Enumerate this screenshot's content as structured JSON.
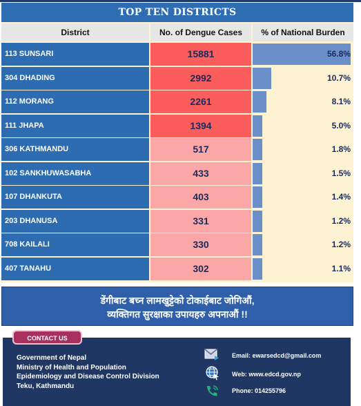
{
  "title": "TOP TEN DISTRICTS",
  "columns": {
    "district": "District",
    "cases": "No. of Dengue Cases",
    "burden": "% of National Burden"
  },
  "rows": [
    {
      "district": "113 SUNSARI",
      "cases": "15881",
      "burden": "56.8%",
      "burden_value": 56.8,
      "case_color": "#fb5d5d"
    },
    {
      "district": "304 DHADING",
      "cases": "2992",
      "burden": "10.7%",
      "burden_value": 10.7,
      "case_color": "#fb5d5d"
    },
    {
      "district": "112 MORANG",
      "cases": "2261",
      "burden": "8.1%",
      "burden_value": 8.1,
      "case_color": "#fb5d5d"
    },
    {
      "district": "111 JHAPA",
      "cases": "1394",
      "burden": "5.0%",
      "burden_value": 5.0,
      "case_color": "#fb5d5d"
    },
    {
      "district": "306 KATHMANDU",
      "cases": "517",
      "burden": "1.8%",
      "burden_value": 1.8,
      "case_color": "#fca7a7"
    },
    {
      "district": "102 SANKHUWASABHA",
      "cases": "433",
      "burden": "1.5%",
      "burden_value": 1.5,
      "case_color": "#fca7a7"
    },
    {
      "district": "107 DHANKUTA",
      "cases": "403",
      "burden": "1.4%",
      "burden_value": 1.4,
      "case_color": "#fca7a7"
    },
    {
      "district": "203 DHANUSA",
      "cases": "331",
      "burden": "1.2%",
      "burden_value": 1.2,
      "case_color": "#fca7a7"
    },
    {
      "district": "708 KAILALI",
      "cases": "330",
      "burden": "1.2%",
      "burden_value": 1.2,
      "case_color": "#fca7a7"
    },
    {
      "district": "407 TANAHU",
      "cases": "302",
      "burden": "1.1%",
      "burden_value": 1.1,
      "case_color": "#fca7a7"
    }
  ],
  "message": {
    "line1": "डेंगीबाट बच्न लामखुट्टेको टोकाईबाट जोगिऔं,",
    "line2": "व्यक्तिगत सुरक्षाका उपायहरु अपनाऔं !!"
  },
  "contact": {
    "label": "CONTACT US",
    "address": [
      "Government of Nepal",
      "Ministry of Health and Population",
      "Epidemiology and Disease Control Division",
      "Teku, Kathmandu"
    ],
    "email": "Email: ewarsedcd@gmail.com",
    "web": "Web: www.edcd.gov.np",
    "phone": "Phone: 014255796"
  },
  "colors": {
    "district_cell": "#2e6cb2",
    "bar": "#6b8fc9",
    "burden_bg": "#fdf3d2",
    "footer": "#1f3762"
  },
  "icons": [
    "email-icon",
    "globe-icon",
    "phone-icon"
  ]
}
